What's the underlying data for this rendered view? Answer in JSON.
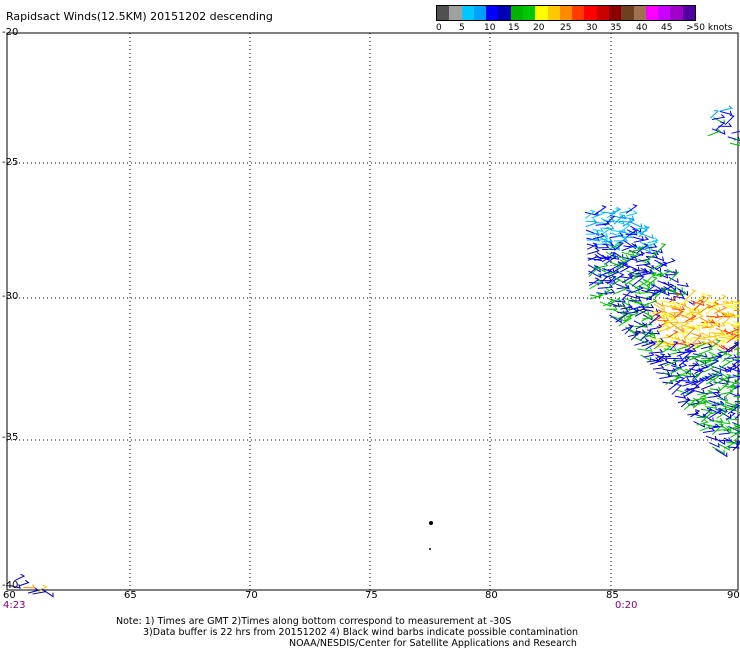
{
  "title": "Rapidsact Winds(12.5KM) 20151202 descending",
  "legend": {
    "colors": [
      "#505050",
      "#a0a0a0",
      "#00c8ff",
      "#00a0ff",
      "#0000ff",
      "#0000b4",
      "#00b400",
      "#00c800",
      "#ffff00",
      "#ffc800",
      "#ff8c00",
      "#ff3c00",
      "#ff0000",
      "#c80000",
      "#8c0000",
      "#6e4020",
      "#a07050",
      "#ff00ff",
      "#c800ff",
      "#a000c8",
      "#5000a0"
    ],
    "labels": [
      "0",
      "5",
      "10",
      "15",
      "20",
      "25",
      "30",
      "35",
      "40",
      "45",
      ">50 knots"
    ]
  },
  "axes": {
    "y_labels": [
      "-20",
      "-25",
      "-30",
      "-35",
      "-40"
    ],
    "x_labels": [
      "60",
      "65",
      "70",
      "75",
      "80",
      "85",
      "90"
    ]
  },
  "time_labels": [
    "4:23",
    "0:20"
  ],
  "notes": {
    "line1": "Note: 1) Times are GMT 2)Times along bottom correspond to measurement at -30S",
    "line2": "3)Data buffer is 22 hrs from 20151202 4) Black wind barbs indicate possible contamination",
    "line3": "NOAA/NESDIS/Center for Satellite Applications and Research"
  }
}
